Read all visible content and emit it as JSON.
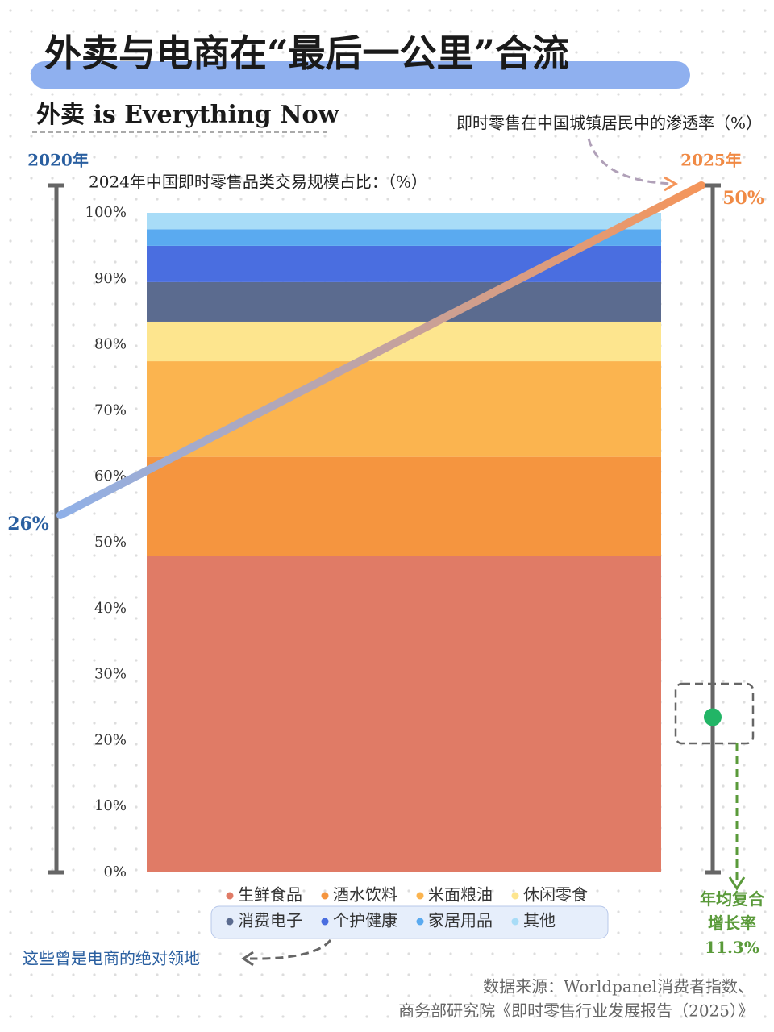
{
  "chart_data": {
    "type": "stacked_bar_with_line",
    "title": "外卖与电商在“最后一公里”合流",
    "subtitle": "外卖 is Everything Now",
    "bar_title": "2024年中国即时零售品类交易规模占比：（%）",
    "ylim": [
      0,
      100
    ],
    "yticks": [
      {
        "value": 0,
        "label": "0%"
      },
      {
        "value": 10,
        "label": "10%"
      },
      {
        "value": 20,
        "label": "20%"
      },
      {
        "value": 30,
        "label": "30%"
      },
      {
        "value": 40,
        "label": "40%"
      },
      {
        "value": 50,
        "label": "50%"
      },
      {
        "value": 60,
        "label": "60%"
      },
      {
        "value": 70,
        "label": "70%"
      },
      {
        "value": 80,
        "label": "80%"
      },
      {
        "value": 90,
        "label": "90%"
      },
      {
        "value": 100,
        "label": "100%"
      }
    ],
    "series": [
      {
        "name": "生鲜食品",
        "color": "#e07b66",
        "values": [
          48
        ]
      },
      {
        "name": "酒水饮料",
        "color": "#f5953f",
        "values": [
          15
        ]
      },
      {
        "name": "米面粮油",
        "color": "#fbb44f",
        "values": [
          14.5
        ]
      },
      {
        "name": "休闲零食",
        "color": "#fde58e",
        "values": [
          6
        ]
      },
      {
        "name": "消费电子",
        "color": "#5b6b8f",
        "values": [
          6
        ]
      },
      {
        "name": "个护健康",
        "color": "#4a6ee0",
        "values": [
          5.5
        ]
      },
      {
        "name": "家居用品",
        "color": "#5aaaf0",
        "values": [
          2.5
        ]
      },
      {
        "name": "其他",
        "color": "#a8dcf7",
        "values": [
          2.5
        ]
      }
    ],
    "line": {
      "name": "即时零售在中国城镇居民中的渗透率（%）",
      "x": [
        "2020年",
        "2025年"
      ],
      "values": [
        26,
        50
      ],
      "value_labels": [
        "26%",
        "50%"
      ],
      "axis": "y2",
      "colors": [
        "#8fb0e8",
        "#f5955a"
      ]
    },
    "y2lim": [
      0,
      50
    ],
    "cagr": {
      "label": "年均复合增长率",
      "value": 11.3,
      "value_label": "11.3%",
      "color": "#22b566"
    },
    "annotation": "这些曾是电商的绝对领地",
    "source": [
      "数据来源：Worldpanel消费者指数、",
      "商务部研究院《即时零售行业发展报告（2025）》"
    ]
  }
}
